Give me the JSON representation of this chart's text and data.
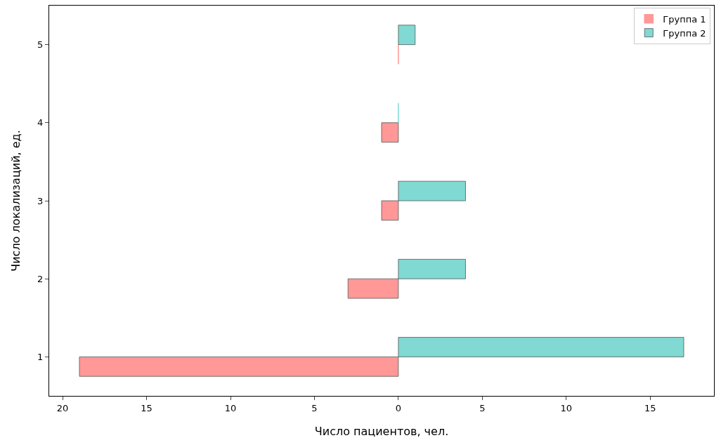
{
  "chart_data": {
    "type": "bar",
    "orientation": "horizontal",
    "xlabel": "Число пациентов, чел.",
    "ylabel": "Число локализаций, ед.",
    "categories": [
      "5",
      "4",
      "3",
      "2",
      "1"
    ],
    "series": [
      {
        "name": "Группа 1",
        "color": "#ff9896",
        "values": [
          0,
          -1,
          -1,
          -3,
          -19
        ]
      },
      {
        "name": "Группа 2",
        "color": "#80d9d2",
        "values": [
          1,
          0,
          4,
          4,
          17
        ]
      }
    ],
    "xlim": [
      -20.8,
      18.8
    ],
    "xticks": [
      {
        "value": -20,
        "label": "20"
      },
      {
        "value": -15,
        "label": "15"
      },
      {
        "value": -10,
        "label": "10"
      },
      {
        "value": -5,
        "label": "5"
      },
      0,
      5,
      10,
      15
    ],
    "grid": false,
    "legend": "top right"
  }
}
